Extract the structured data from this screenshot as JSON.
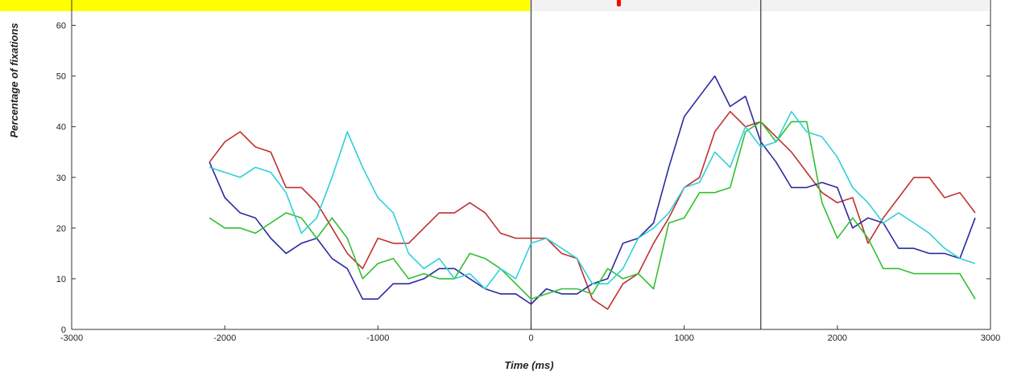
{
  "chart_data": {
    "type": "line",
    "xlabel": "Time (ms)",
    "ylabel": "Percentage of fixations",
    "xlim": [
      -3000,
      3000
    ],
    "ylim": [
      0,
      65
    ],
    "xticks": [
      -3000,
      -2000,
      -1000,
      0,
      1000,
      2000,
      3000
    ],
    "yticks": [
      0,
      10,
      20,
      30,
      40,
      50,
      60
    ],
    "xtick_labels": [
      "-3000",
      "-2000",
      "-1000",
      "0",
      "1000",
      "2000",
      "3000"
    ],
    "ytick_labels": [
      "0",
      "10",
      "20",
      "30",
      "40",
      "50",
      "60"
    ],
    "vertical_lines": [
      0,
      1500
    ],
    "grid": false,
    "x": [
      -2100,
      -2000,
      -1900,
      -1800,
      -1700,
      -1600,
      -1500,
      -1400,
      -1300,
      -1200,
      -1100,
      -1000,
      -900,
      -800,
      -700,
      -600,
      -500,
      -400,
      -300,
      -200,
      -100,
      0,
      100,
      200,
      300,
      400,
      500,
      600,
      700,
      800,
      900,
      1000,
      1100,
      1200,
      1300,
      1400,
      1500,
      1600,
      1700,
      1800,
      1900,
      2000,
      2100,
      2200,
      2300,
      2400,
      2500,
      2600,
      2700,
      2800,
      2900
    ],
    "series": [
      {
        "color": "#c03030",
        "values": [
          33,
          37,
          39,
          36,
          35,
          28,
          28,
          25,
          20,
          15,
          12,
          18,
          17,
          17,
          20,
          23,
          23,
          25,
          23,
          19,
          18,
          18,
          18,
          15,
          14,
          6,
          4,
          9,
          11,
          17,
          22,
          28,
          30,
          39,
          43,
          40,
          41,
          38,
          35,
          31,
          27,
          25,
          26,
          17,
          22,
          26,
          30,
          30,
          26,
          27,
          23
        ]
      },
      {
        "color": "#2a2aa0",
        "values": [
          33,
          26,
          23,
          22,
          18,
          15,
          17,
          18,
          14,
          12,
          6,
          6,
          9,
          9,
          10,
          12,
          12,
          10,
          8,
          7,
          7,
          5,
          8,
          7,
          7,
          9,
          10,
          17,
          18,
          21,
          32,
          42,
          46,
          50,
          44,
          46,
          37,
          33,
          28,
          28,
          29,
          28,
          20,
          22,
          21,
          16,
          16,
          15,
          15,
          14,
          22
        ]
      },
      {
        "color": "#30c030",
        "values": [
          22,
          20,
          20,
          19,
          21,
          23,
          22,
          18,
          22,
          18,
          10,
          13,
          14,
          10,
          11,
          10,
          10,
          15,
          14,
          12,
          9,
          6,
          7,
          8,
          8,
          7,
          12,
          10,
          11,
          8,
          21,
          22,
          27,
          27,
          28,
          39,
          41,
          37,
          41,
          41,
          25,
          18,
          22,
          18,
          12,
          12,
          11,
          11,
          11,
          11,
          6
        ]
      },
      {
        "color": "#30d0d8",
        "values": [
          32,
          31,
          30,
          32,
          31,
          27,
          19,
          22,
          30,
          39,
          32,
          26,
          23,
          15,
          12,
          14,
          10,
          11,
          8,
          12,
          10,
          17,
          18,
          16,
          14,
          9,
          9,
          12,
          18,
          20,
          23,
          28,
          29,
          35,
          32,
          40,
          36,
          37,
          43,
          39,
          38,
          34,
          28,
          25,
          21,
          23,
          21,
          19,
          16,
          14,
          13
        ]
      }
    ]
  }
}
